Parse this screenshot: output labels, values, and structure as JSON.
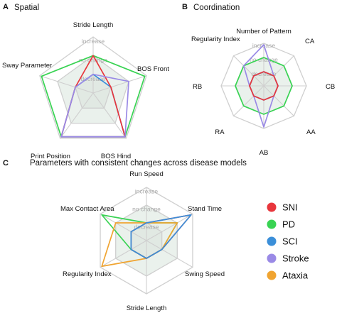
{
  "colors": {
    "SNI": "#e8363c",
    "PD": "#39d353",
    "SCI": "#3b8fd9",
    "Stroke": "#9a8ae6",
    "Ataxia": "#f0a431",
    "grid": "#cfcfcf",
    "middle_fill": "#e6efe9"
  },
  "levels": [
    "increase",
    "no change",
    "decrease"
  ],
  "legend": [
    {
      "key": "SNI",
      "label": "SNI"
    },
    {
      "key": "PD",
      "label": "PD"
    },
    {
      "key": "SCI",
      "label": "SCI"
    },
    {
      "key": "Stroke",
      "label": "Stroke"
    },
    {
      "key": "Ataxia",
      "label": "Ataxia"
    }
  ],
  "chart_data": [
    {
      "panel": "A",
      "title": "Spatial",
      "type": "radar",
      "axes": [
        "Stride Length",
        "BOS Front",
        "BOS Hind",
        "Print Position",
        "Sway Parameter"
      ],
      "scale": {
        "min": 0,
        "max": 3,
        "levels": [
          "decrease",
          "no change",
          "increase"
        ]
      },
      "series": [
        {
          "name": "PD",
          "values": [
            2.0,
            2.9,
            2.9,
            2.9,
            2.9
          ]
        },
        {
          "name": "SCI",
          "values": [
            1.0,
            1.0,
            2.9,
            2.9,
            1.0
          ]
        },
        {
          "name": "SNI",
          "values": [
            2.0,
            1.0,
            2.9,
            2.9,
            1.0
          ]
        },
        {
          "name": "Stroke",
          "values": [
            1.0,
            2.0,
            2.9,
            2.9,
            1.0
          ]
        }
      ]
    },
    {
      "panel": "B",
      "title": "Coordination",
      "type": "radar",
      "axes": [
        "Number of Pattern",
        "CA",
        "CB",
        "AA",
        "AB",
        "RA",
        "RB",
        "Regularity Index"
      ],
      "scale": {
        "min": 0,
        "max": 3,
        "levels": [
          "decrease",
          "no change",
          "increase"
        ]
      },
      "series": [
        {
          "name": "PD",
          "values": [
            2.0,
            2.0,
            2.0,
            2.0,
            2.0,
            2.0,
            2.0,
            2.0
          ]
        },
        {
          "name": "SCI",
          "values": [
            1.0,
            1.0,
            1.0,
            1.0,
            1.0,
            1.0,
            1.0,
            1.0
          ]
        },
        {
          "name": "Stroke",
          "values": [
            2.9,
            1.0,
            1.0,
            1.0,
            2.9,
            1.0,
            1.0,
            2.0
          ]
        },
        {
          "name": "SNI",
          "values": [
            1.0,
            1.0,
            1.0,
            1.0,
            1.0,
            1.0,
            1.0,
            1.0
          ]
        }
      ]
    },
    {
      "panel": "C",
      "title": "Parameters with consistent changes across disease models",
      "type": "radar",
      "axes": [
        "Run Speed",
        "Stand Time",
        "Swing Speed",
        "Stride Length",
        "Regularity Index",
        "Max Contact Area"
      ],
      "scale": {
        "min": 0,
        "max": 3,
        "levels": [
          "decrease",
          "no change",
          "increase"
        ]
      },
      "series": [
        {
          "name": "PD",
          "values": [
            1.0,
            2.0,
            1.0,
            1.0,
            1.0,
            2.9
          ]
        },
        {
          "name": "Ataxia",
          "values": [
            1.0,
            2.0,
            1.0,
            1.0,
            2.9,
            2.0
          ]
        },
        {
          "name": "SNI",
          "values": [
            1.0,
            2.9,
            1.0,
            1.0,
            1.0,
            1.0
          ]
        },
        {
          "name": "SCI",
          "values": [
            1.0,
            2.9,
            1.0,
            1.0,
            1.0,
            1.0
          ]
        }
      ]
    }
  ]
}
